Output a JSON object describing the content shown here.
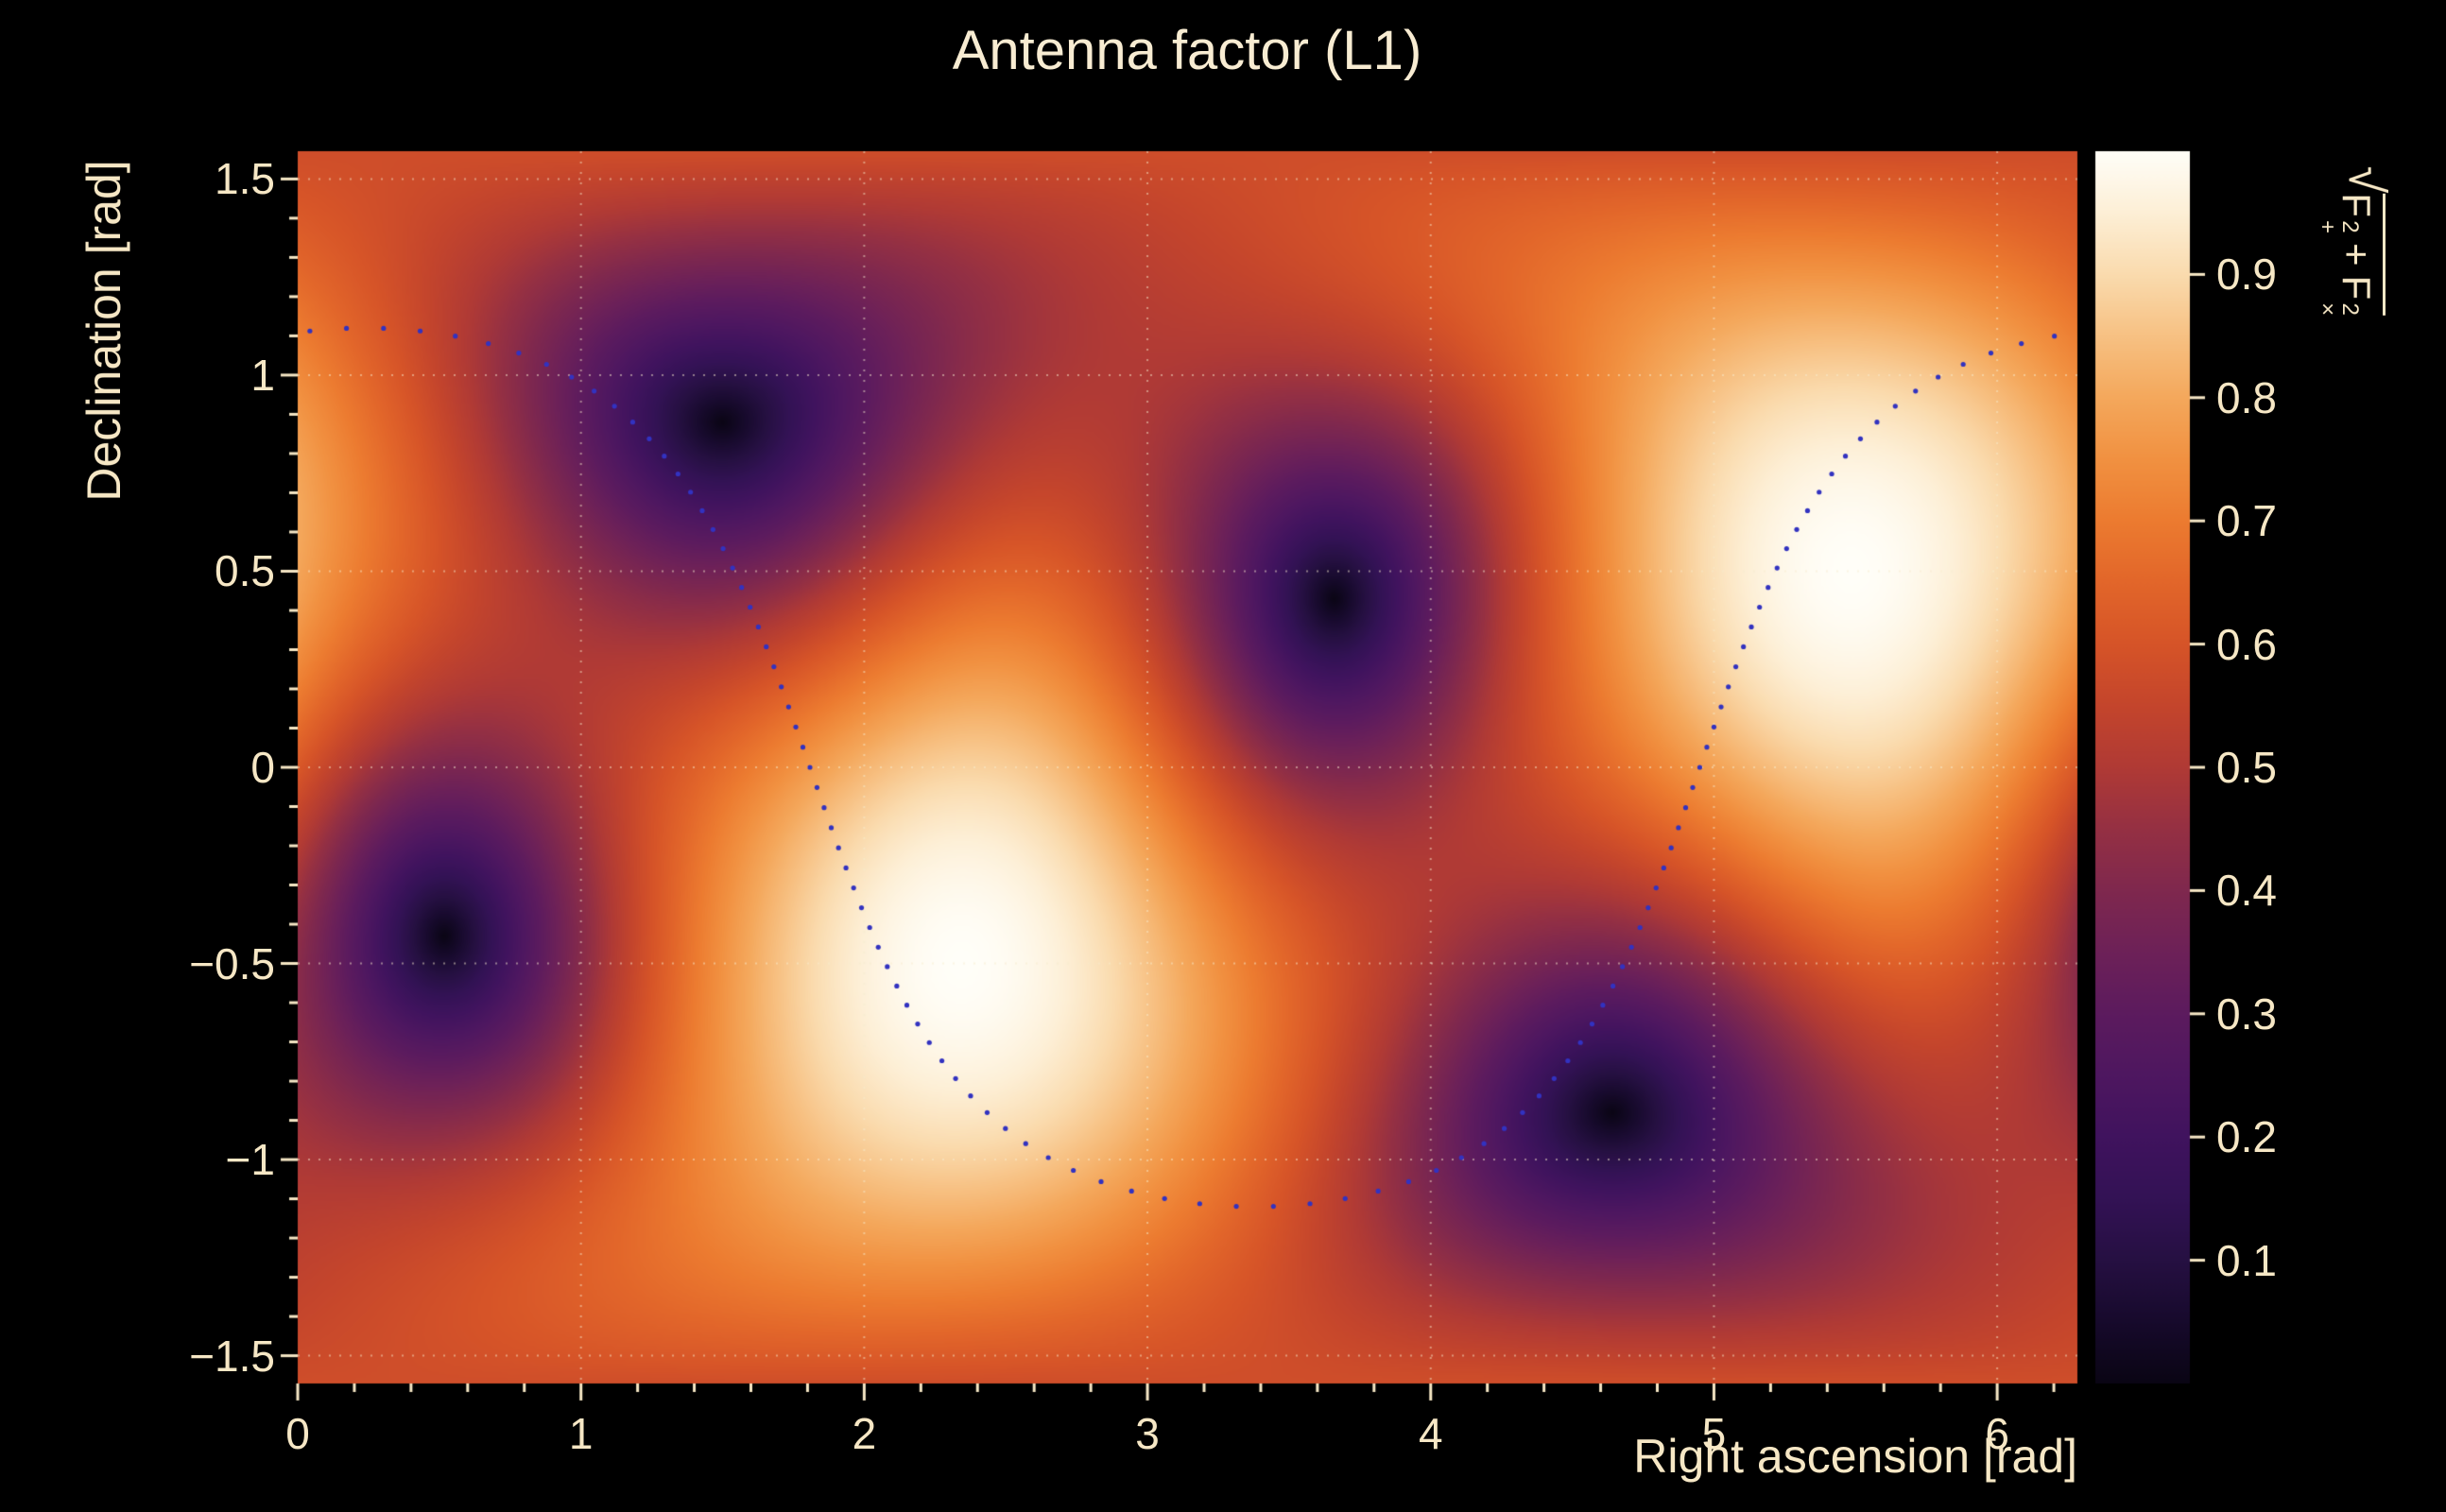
{
  "title": "Antenna factor (L1)",
  "colors": {
    "background": "#000000",
    "text": "#f6e7c5",
    "grid": "#f8ebcd",
    "tick": "#f6e7c5",
    "curve_dot": "#3232c0"
  },
  "zlabel_parts": {
    "radical": "√",
    "f1": "F",
    "f1_sup": "2",
    "f1_sub": "+",
    "plus": "+",
    "f2": "F",
    "f2_sup": "2",
    "f2_sub": "×"
  },
  "chart_data": {
    "type": "heatmap",
    "title": "Antenna factor (L1)",
    "xlabel": "Right ascension [rad]",
    "ylabel": "Declination [rad]",
    "zlabel": "sqrt(F+^2 + Fx^2)",
    "x_range": [
      0,
      6.283185307
    ],
    "y_range": [
      -1.570796327,
      1.570796327
    ],
    "z_range": [
      0,
      1
    ],
    "x_tick_values": [
      0,
      1,
      2,
      3,
      4,
      5,
      6
    ],
    "x_tick_labels": [
      "0",
      "1",
      "2",
      "3",
      "4",
      "5",
      "6"
    ],
    "x_minor_step": 0.2,
    "y_tick_values": [
      1.5,
      1,
      0.5,
      0,
      -0.5,
      -1,
      -1.5
    ],
    "y_tick_labels": [
      "1.5",
      "1",
      "0.5",
      "0",
      "−0.5",
      "−1",
      "−1.5"
    ],
    "y_minor_step": 0.1,
    "z_tick_values": [
      0.1,
      0.2,
      0.3,
      0.4,
      0.5,
      0.6,
      0.7,
      0.8,
      0.9
    ],
    "z_tick_labels": [
      "0.1",
      "0.2",
      "0.3",
      "0.4",
      "0.5",
      "0.6",
      "0.7",
      "0.8",
      "0.9"
    ],
    "grid": true,
    "field": {
      "description": "Interferometer antenna-pattern magnitude sqrt(F+^2 + Fx^2) over the sky; zero at the four null directions, unity at the two poles of the null plane; background level ~0.6-0.75.",
      "null_points_radec": [
        [
          1.5,
          0.88
        ],
        [
          3.68,
          0.4
        ],
        [
          4.642,
          -0.88
        ],
        [
          0.538,
          -0.4
        ]
      ],
      "max_points_radec": [
        [
          5.49,
          0.5
        ],
        [
          2.35,
          -0.5
        ]
      ],
      "background_level": 0.7
    },
    "overlay_curve": {
      "style": "dotted",
      "color": "#3232c0",
      "great_circle": {
        "inclination_rad": 1.12,
        "ascending_node_ra_rad": 4.95
      },
      "n_points": 110,
      "dot_radius_px": 2.6
    },
    "colormap": {
      "stops": [
        [
          0.0,
          "#0a0514"
        ],
        [
          0.05,
          "#170a2c"
        ],
        [
          0.1,
          "#261042"
        ],
        [
          0.15,
          "#331255"
        ],
        [
          0.2,
          "#40135e"
        ],
        [
          0.25,
          "#4e1760"
        ],
        [
          0.3,
          "#5c1b5e"
        ],
        [
          0.35,
          "#6d2158"
        ],
        [
          0.4,
          "#7f284e"
        ],
        [
          0.45,
          "#953043"
        ],
        [
          0.5,
          "#b03a35"
        ],
        [
          0.55,
          "#c4452c"
        ],
        [
          0.6,
          "#d65428"
        ],
        [
          0.65,
          "#e2662a"
        ],
        [
          0.7,
          "#ec7b30"
        ],
        [
          0.75,
          "#f19141"
        ],
        [
          0.8,
          "#f4a85c"
        ],
        [
          0.85,
          "#f7c183"
        ],
        [
          0.9,
          "#fadbae"
        ],
        [
          0.95,
          "#fdefd6"
        ],
        [
          1.0,
          "#fffef8"
        ]
      ]
    },
    "legend": "none"
  }
}
